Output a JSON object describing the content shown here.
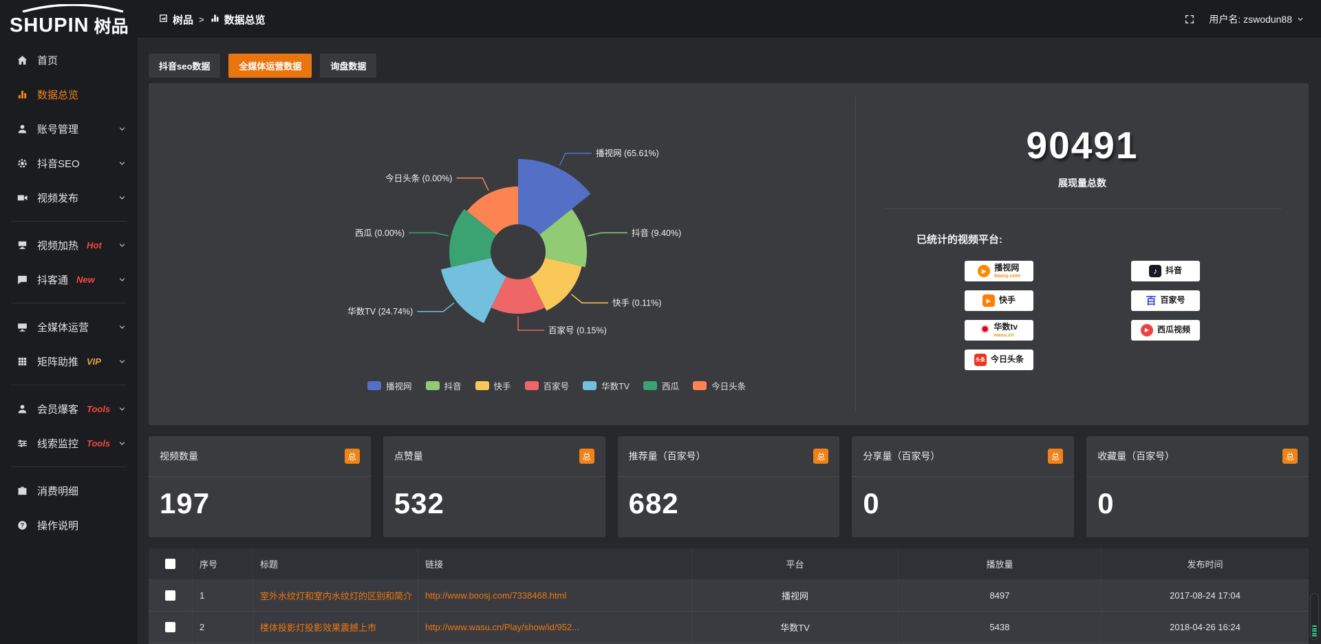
{
  "header": {
    "logo_en": "SHUPIN",
    "logo_cn": "树品",
    "breadcrumb": [
      {
        "icon": "app",
        "label": "树品"
      },
      {
        "icon": "chart",
        "label": "数据总览"
      }
    ],
    "breadcrumb_sep": ">",
    "username": "用户名: zswodun88"
  },
  "sidebar": {
    "items": [
      {
        "icon": "home",
        "label": "首页"
      },
      {
        "icon": "chart",
        "label": "数据总览",
        "active": true
      },
      {
        "icon": "user",
        "label": "账号管理",
        "chevron": true
      },
      {
        "icon": "gear",
        "label": "抖音SEO",
        "chevron": true
      },
      {
        "icon": "video",
        "label": "视频发布",
        "chevron": true,
        "divider_after": true
      },
      {
        "icon": "heat",
        "label": "视频加热",
        "badge": "Hot",
        "badge_color": "#f5483b",
        "chevron": true
      },
      {
        "icon": "chat",
        "label": "抖客通",
        "badge": "New",
        "badge_color": "#f5483b",
        "chevron": true,
        "divider_after": true
      },
      {
        "icon": "monitor",
        "label": "全媒体运营",
        "chevron": true
      },
      {
        "icon": "grid",
        "label": "矩阵助推",
        "badge": "VIP",
        "badge_color": "#e7a23e",
        "chevron": true,
        "divider_after": true
      },
      {
        "icon": "user",
        "label": "会员爆客",
        "badge": "Tools",
        "badge_color": "#f5483b",
        "chevron": true
      },
      {
        "icon": "sliders",
        "label": "线索监控",
        "badge": "Tools",
        "badge_color": "#f5483b",
        "chevron": true,
        "divider_after": true
      },
      {
        "icon": "bag",
        "label": "消费明细"
      },
      {
        "icon": "question",
        "label": "操作说明"
      }
    ]
  },
  "tabs": [
    {
      "label": "抖音seo数据",
      "active": false
    },
    {
      "label": "全媒体运营数据",
      "active": true
    },
    {
      "label": "询盘数据",
      "active": false
    }
  ],
  "chart_data": {
    "type": "pie",
    "variant": "rose-donut",
    "categories": [
      "播视网",
      "抖音",
      "快手",
      "百家号",
      "华数TV",
      "西瓜",
      "今日头条"
    ],
    "values": [
      65.61,
      9.4,
      0.11,
      0.15,
      24.74,
      0.0,
      0.0
    ],
    "percent_labels": [
      "65.61%",
      "9.40%",
      "0.11%",
      "0.15%",
      "24.74%",
      "0.00%",
      "0.00%"
    ],
    "colors": [
      "#5470c6",
      "#91cc75",
      "#fac858",
      "#ee6666",
      "#73c0de",
      "#3ba272",
      "#fc8452"
    ],
    "legend": [
      "播视网",
      "抖音",
      "快手",
      "百家号",
      "华数TV",
      "西瓜",
      "今日头条"
    ],
    "legend_position": "bottom",
    "slice_radii": [
      135,
      100,
      95,
      90,
      115,
      100,
      95
    ],
    "inner_radius": 40
  },
  "summary": {
    "total": "90491",
    "total_label": "展现量总数",
    "platforms_label": "已统计的视频平台:",
    "platforms_left": [
      {
        "name": "播视网",
        "sub": "boosj.com",
        "sub_color": "#ff8a00",
        "logo": {
          "shape": "circle",
          "glyph": "▶",
          "color": "#ff8a00",
          "glyph_size": 9
        }
      },
      {
        "name": "快手",
        "logo": {
          "shape": "square",
          "glyph": "▶",
          "color": "#ff7e00",
          "glyph_size": 9
        }
      },
      {
        "name": "华数tv",
        "sub": "wasu.cn",
        "sub_color": "#d5a021",
        "logo": {
          "shape": "text",
          "glyph": "✹",
          "color": "#e60012",
          "glyph_size": 16
        }
      },
      {
        "name": "今日头条",
        "logo": {
          "shape": "square",
          "glyph": "头条",
          "color": "#ed3321",
          "glyph_size": 7
        }
      }
    ],
    "platforms_right": [
      {
        "name": "抖音",
        "logo": {
          "shape": "square",
          "glyph": "♪",
          "color": "#161823",
          "glyph_size": 12
        }
      },
      {
        "name": "百家号",
        "logo": {
          "shape": "text",
          "glyph": "百",
          "color": "#3245e8",
          "glyph_size": 15
        }
      },
      {
        "name": "西瓜视频",
        "logo": {
          "shape": "circle",
          "glyph": "▶",
          "color": "#f04142",
          "glyph_size": 8
        }
      }
    ]
  },
  "stat_cards": [
    {
      "label": "视频数量",
      "badge": "总",
      "value": "197"
    },
    {
      "label": "点赞量",
      "badge": "总",
      "value": "532"
    },
    {
      "label": "推荐量（百家号）",
      "badge": "总",
      "value": "682"
    },
    {
      "label": "分享量（百家号）",
      "badge": "总",
      "value": "0"
    },
    {
      "label": "收藏量（百家号）",
      "badge": "总",
      "value": "0"
    }
  ],
  "table": {
    "columns": [
      "序号",
      "标题",
      "链接",
      "平台",
      "播放量",
      "发布时间"
    ],
    "rows": [
      {
        "no": "1",
        "title": "室外水纹灯和室内水纹灯的区别和简介",
        "link": "http://www.boosj.com/7338468.html",
        "platform": "播视网",
        "plays": "8497",
        "time": "2017-08-24 17:04"
      },
      {
        "no": "2",
        "title": "楼体投影灯投影效果震撼上市",
        "link": "http://www.wasu.cn/Play/show/id/952...",
        "platform": "华数TV",
        "plays": "5438",
        "time": "2018-04-26 16:24"
      }
    ]
  }
}
